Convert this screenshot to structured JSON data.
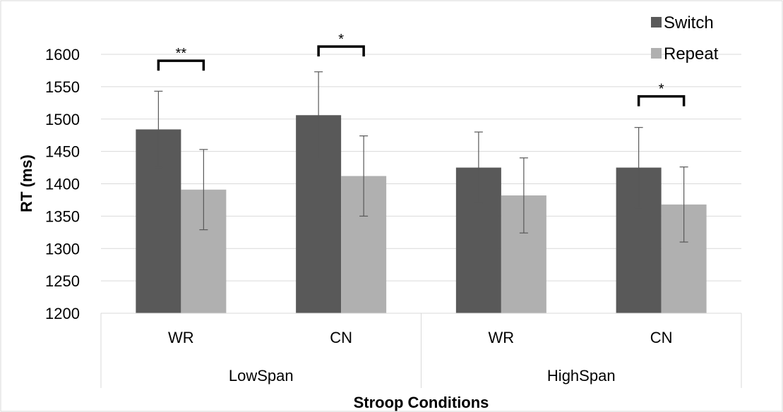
{
  "chart_data": {
    "type": "bar",
    "title": "",
    "xlabel": "Stroop Conditions",
    "ylabel": "RT (ms)",
    "ylim": [
      1200,
      1600
    ],
    "yticks": [
      1200,
      1250,
      1300,
      1350,
      1400,
      1450,
      1500,
      1550,
      1600
    ],
    "grid": true,
    "legend_position": "top-right",
    "groups": [
      {
        "label": "LowSpan",
        "categories": [
          "WR",
          "CN"
        ]
      },
      {
        "label": "HighSpan",
        "categories": [
          "WR",
          "CN"
        ]
      }
    ],
    "categories": [
      "WR",
      "CN",
      "WR",
      "CN"
    ],
    "series": [
      {
        "name": "Switch",
        "color": "#595959",
        "values": [
          1484,
          1506,
          1425,
          1425
        ],
        "error": [
          59,
          67,
          55,
          62
        ]
      },
      {
        "name": "Repeat",
        "color": "#b0b0b0",
        "values": [
          1391,
          1412,
          1382,
          1368
        ],
        "error": [
          62,
          62,
          58,
          58
        ]
      }
    ],
    "annotations": [
      {
        "category_index": 0,
        "text": "**",
        "y": 1590
      },
      {
        "category_index": 1,
        "text": "*",
        "y": 1612
      },
      {
        "category_index": 3,
        "text": "*",
        "y": 1535
      }
    ]
  }
}
